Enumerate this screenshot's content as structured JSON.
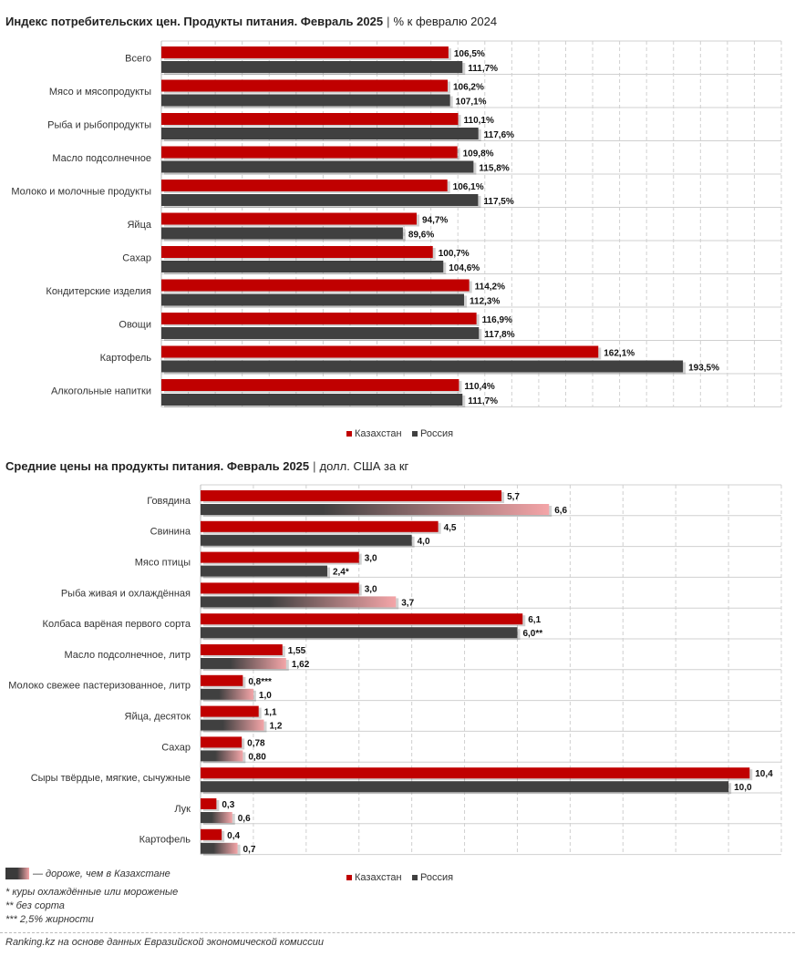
{
  "colors": {
    "kz": "#c00000",
    "ru": "#404040",
    "ru_light": "#f4a5a8",
    "grid": "#d0d0d0"
  },
  "chart_data": [
    {
      "type": "bar",
      "orientation": "horizontal",
      "title": "Индекс потребительских цен. Продукты питания. Февраль 2025",
      "subtitle": "% к февралю 2024",
      "xlim": [
        0,
        230
      ],
      "categories": [
        "Всего",
        "Мясо и мясопродукты",
        "Рыба и рыбопродукты",
        "Масло подсолнечное",
        "Молоко и молочные продукты",
        "Яйца",
        "Сахар",
        "Кондитерские изделия",
        "Овощи",
        "Картофель",
        "Алкогольные напитки"
      ],
      "series": [
        {
          "name": "Казахстан",
          "values": [
            106.5,
            106.2,
            110.1,
            109.8,
            106.1,
            94.7,
            100.7,
            114.2,
            116.9,
            162.1,
            110.4
          ],
          "labels": [
            "106,5%",
            "106,2%",
            "110,1%",
            "109,8%",
            "106,1%",
            "94,7%",
            "100,7%",
            "114,2%",
            "116,9%",
            "162,1%",
            "110,4%"
          ]
        },
        {
          "name": "Россия",
          "values": [
            111.7,
            107.1,
            117.6,
            115.8,
            117.5,
            89.6,
            104.6,
            112.3,
            117.8,
            193.5,
            111.7
          ],
          "labels": [
            "111,7%",
            "107,1%",
            "117,6%",
            "115,8%",
            "117,5%",
            "89,6%",
            "104,6%",
            "112,3%",
            "117,8%",
            "193,5%",
            "111,7%"
          ]
        }
      ]
    },
    {
      "type": "bar",
      "orientation": "horizontal",
      "title": "Средние цены на продукты питания. Февраль 2025",
      "subtitle": "долл. США за кг",
      "xlim": [
        0,
        11
      ],
      "categories": [
        "Говядина",
        "Свинина",
        "Мясо птицы",
        "Рыба живая и охлаждённая",
        "Колбаса варёная первого сорта",
        "Масло подсолнечное, литр",
        "Молоко свежее пастеризованное, литр",
        "Яйца, десяток",
        "Сахар",
        "Сыры твёрдые, мягкие, сычужные",
        "Лук",
        "Картофель"
      ],
      "series": [
        {
          "name": "Казахстан",
          "values": [
            5.7,
            4.5,
            3.0,
            3.0,
            6.1,
            1.55,
            0.8,
            1.1,
            0.78,
            10.4,
            0.3,
            0.4
          ],
          "labels": [
            "5,7",
            "4,5",
            "3,0",
            "3,0",
            "6,1",
            "1,55",
            "0,8***",
            "1,1",
            "0,78",
            "10,4",
            "0,3",
            "0,4"
          ]
        },
        {
          "name": "Россия",
          "values": [
            6.6,
            4.0,
            2.4,
            3.7,
            6.0,
            1.62,
            1.0,
            1.2,
            0.8,
            10.0,
            0.6,
            0.7
          ],
          "labels": [
            "6,6",
            "4,0",
            "2,4*",
            "3,7",
            "6,0**",
            "1,62",
            "1,0",
            "1,2",
            "0,80",
            "10,0",
            "0,6",
            "0,7"
          ],
          "more_expensive": [
            true,
            false,
            false,
            true,
            false,
            true,
            true,
            true,
            true,
            false,
            true,
            true
          ]
        }
      ]
    }
  ],
  "legend": {
    "kz": "Казахстан",
    "ru": "Россия"
  },
  "notes": {
    "key": "— дороже, чем в Казахстане",
    "n1": "* куры охлаждённые или мороженые",
    "n2": "** без сорта",
    "n3": "***  2,5% жирности"
  },
  "source": "Ranking.kz на основе данных Евразийской экономической комиссии"
}
